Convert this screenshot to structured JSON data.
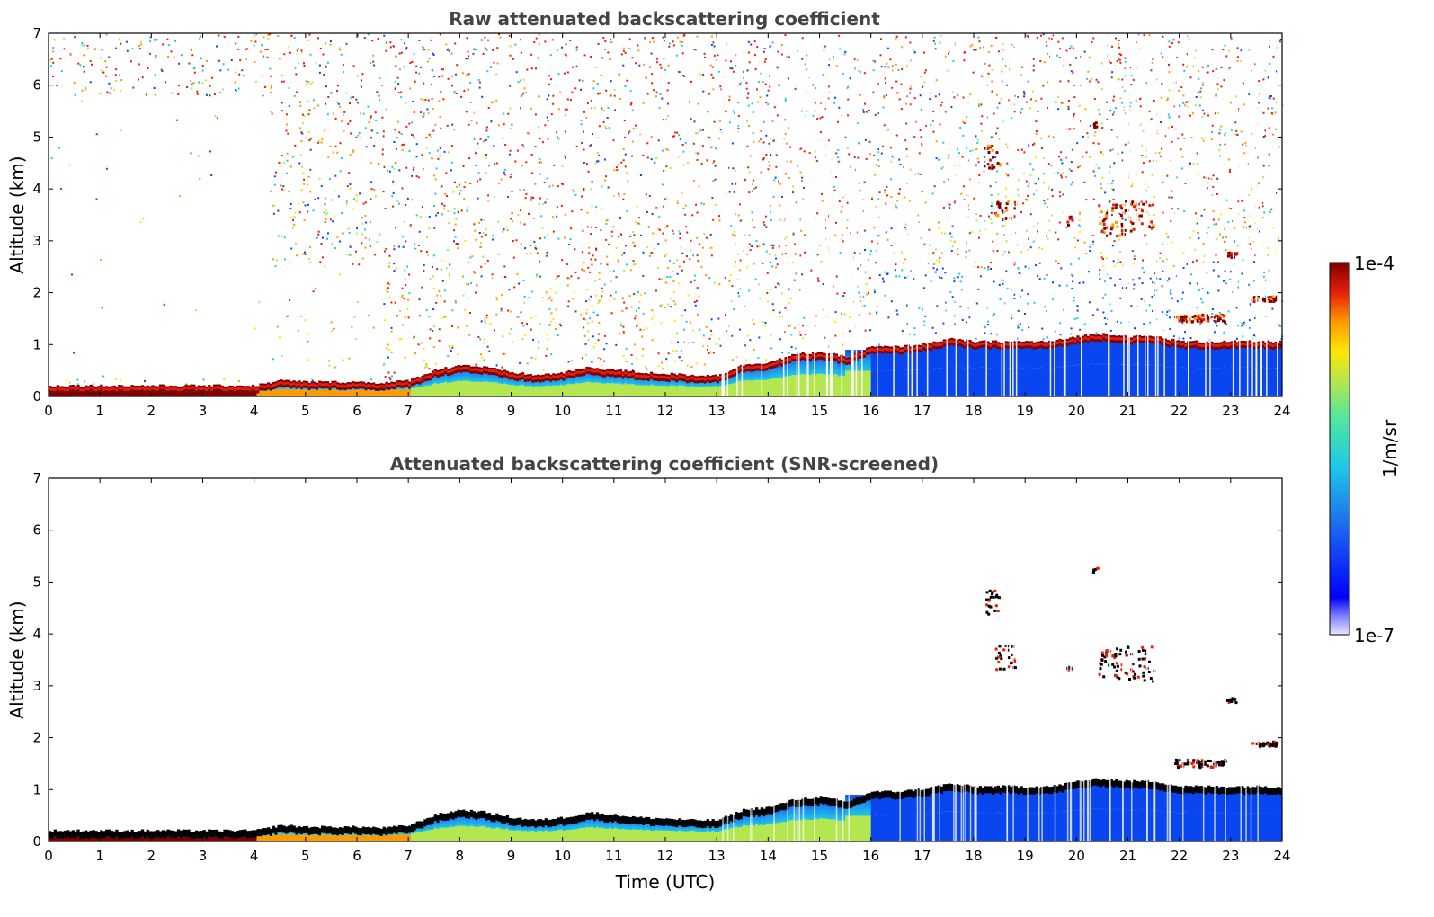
{
  "colors": {
    "dark_red": "#7f0000",
    "red": "#e61e0a",
    "orange": "#ff9a00",
    "yellow": "#ffe600",
    "light_green": "#b4e650",
    "cyan": "#1ec8e6",
    "blue": "#0a46f0",
    "deep_blue": "#0000ff",
    "pale_lavender": "#e6e6ff",
    "black": "#000000",
    "title_gray": "#444444"
  },
  "colorbar": {
    "max_label": "1e-4",
    "min_label": "1e-7",
    "unit_label": "1/m/sr",
    "scale": "log"
  },
  "chart_data": [
    {
      "type": "heatmap",
      "title": "Raw attenuated backscattering coefficient",
      "xlabel": "",
      "ylabel": "Altitude (km)",
      "xlim": [
        0,
        24
      ],
      "ylim": [
        0,
        7
      ],
      "x_ticks": [
        "0",
        "1",
        "2",
        "3",
        "4",
        "5",
        "6",
        "7",
        "8",
        "9",
        "10",
        "11",
        "12",
        "13",
        "14",
        "15",
        "16",
        "17",
        "18",
        "19",
        "20",
        "21",
        "22",
        "23",
        "24"
      ],
      "y_ticks": [
        "0",
        "1",
        "2",
        "3",
        "4",
        "5",
        "6",
        "7"
      ],
      "grid": false,
      "colorscale_range": [
        1e-07,
        0.0001
      ],
      "boundary_layer_top_km": {
        "x": [
          0,
          1,
          2,
          3,
          4,
          4.5,
          5,
          6,
          6.5,
          7,
          7.5,
          8,
          8.5,
          9,
          9.5,
          10,
          10.5,
          11,
          11.5,
          12,
          12.5,
          13,
          13.5,
          14,
          14.5,
          15,
          15.5,
          16,
          16.5,
          17,
          17.5,
          18,
          18.5,
          19,
          19.5,
          20,
          20.5,
          21,
          21.5,
          22,
          22.5,
          23,
          23.5,
          24
        ],
        "y": [
          0.15,
          0.15,
          0.15,
          0.15,
          0.15,
          0.25,
          0.22,
          0.22,
          0.2,
          0.25,
          0.45,
          0.55,
          0.5,
          0.4,
          0.35,
          0.4,
          0.5,
          0.45,
          0.4,
          0.38,
          0.35,
          0.35,
          0.55,
          0.6,
          0.75,
          0.8,
          0.7,
          0.9,
          0.9,
          0.95,
          1.05,
          1.0,
          1.0,
          1.0,
          1.0,
          1.1,
          1.15,
          1.1,
          1.1,
          1.0,
          1.0,
          1.0,
          1.0,
          1.0
        ]
      },
      "cloud_layers": [
        {
          "time": [
            18.2,
            18.5
          ],
          "altitude_km": [
            4.4,
            4.9
          ]
        },
        {
          "time": [
            18.4,
            18.8
          ],
          "altitude_km": [
            3.3,
            3.8
          ]
        },
        {
          "time": [
            19.8,
            19.9
          ],
          "altitude_km": [
            3.3,
            3.5
          ]
        },
        {
          "time": [
            20.4,
            21.5
          ],
          "altitude_km": [
            3.1,
            3.8
          ]
        },
        {
          "time": [
            20.3,
            20.4
          ],
          "altitude_km": [
            5.2,
            5.3
          ]
        },
        {
          "time": [
            22.9,
            23.1
          ],
          "altitude_km": [
            2.7,
            2.8
          ]
        },
        {
          "time": [
            21.9,
            22.9
          ],
          "altitude_km": [
            1.45,
            1.6
          ]
        },
        {
          "time": [
            23.4,
            23.9
          ],
          "altitude_km": [
            1.85,
            1.95
          ]
        }
      ]
    },
    {
      "type": "heatmap",
      "title": "Attenuated backscattering coefficient (SNR-screened)",
      "xlabel": "Time (UTC)",
      "ylabel": "Altitude (km)",
      "xlim": [
        0,
        24
      ],
      "ylim": [
        0,
        7
      ],
      "x_ticks": [
        "0",
        "1",
        "2",
        "3",
        "4",
        "5",
        "6",
        "7",
        "8",
        "9",
        "10",
        "11",
        "12",
        "13",
        "14",
        "15",
        "16",
        "17",
        "18",
        "19",
        "20",
        "21",
        "22",
        "23",
        "24"
      ],
      "y_ticks": [
        "0",
        "1",
        "2",
        "3",
        "4",
        "5",
        "6",
        "7"
      ],
      "grid": false,
      "colorscale_range": [
        1e-07,
        0.0001
      ]
    }
  ]
}
